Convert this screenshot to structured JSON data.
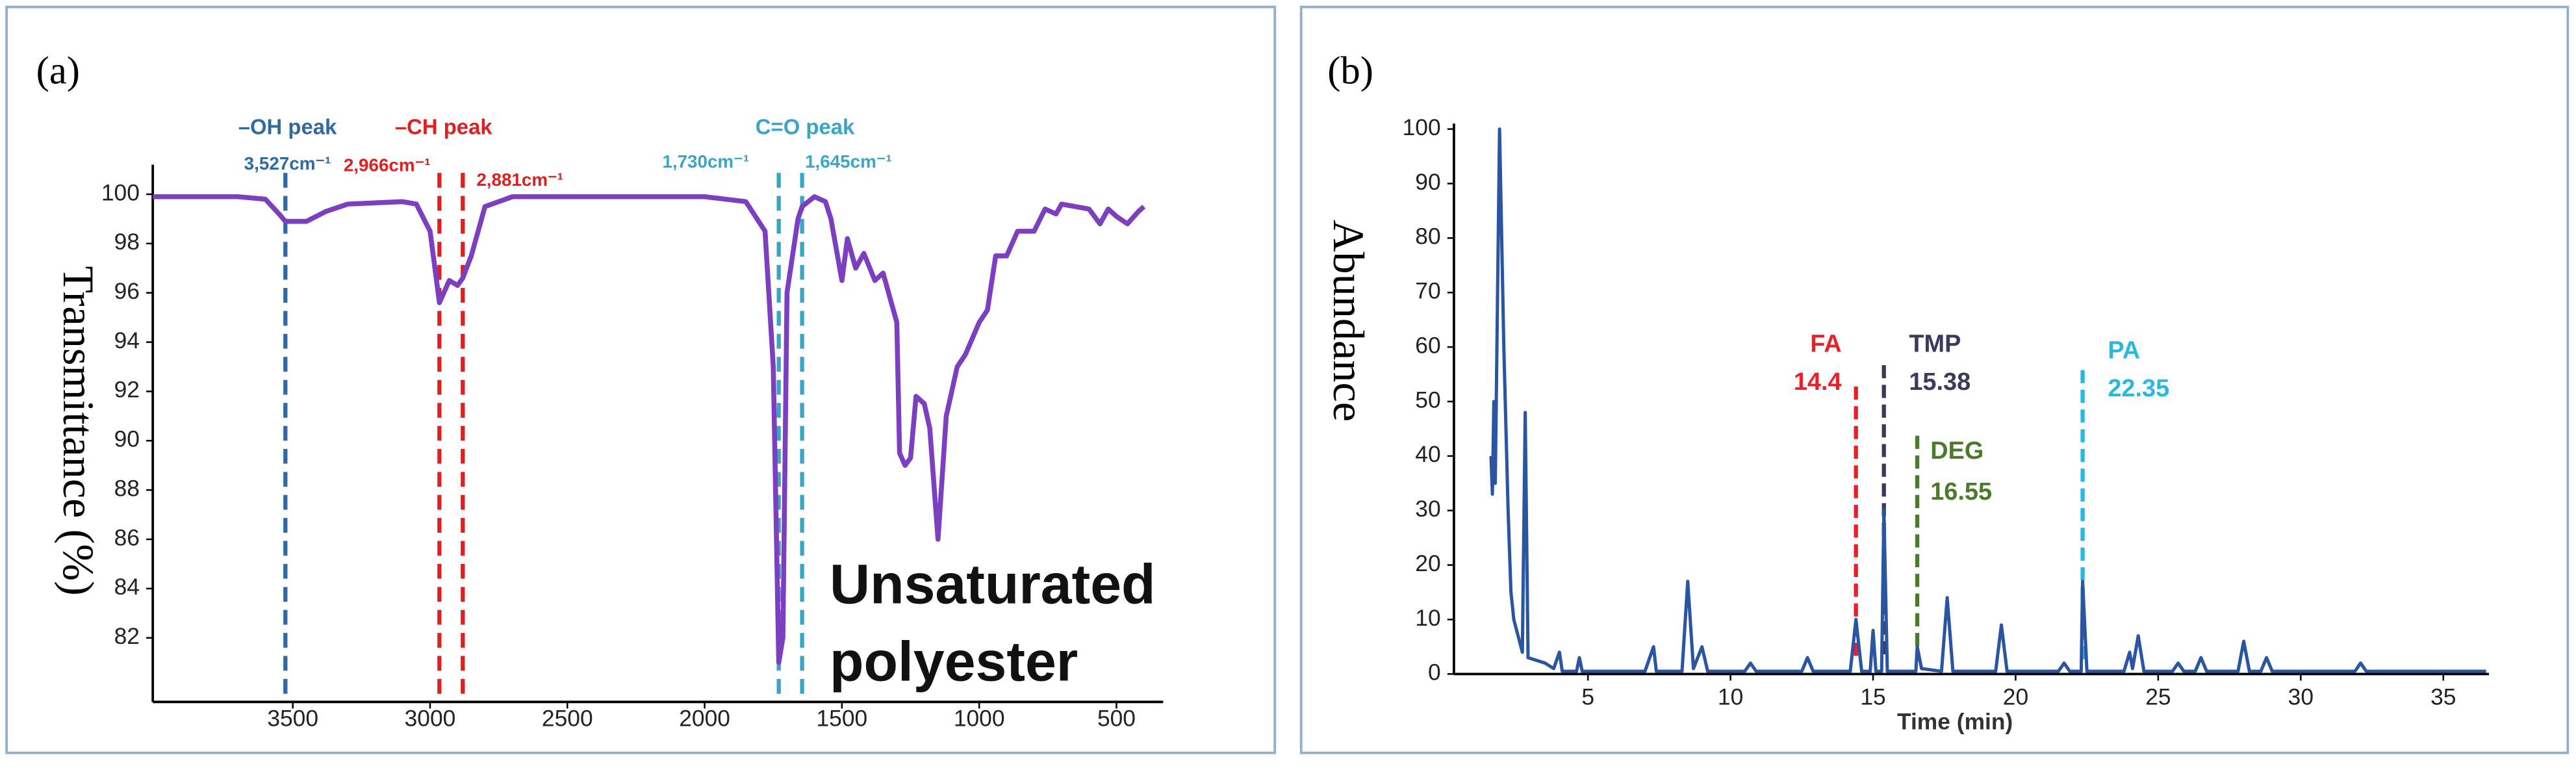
{
  "chart_data": [
    {
      "type": "line",
      "panel_label": "(a)",
      "y_label": "Transmittance (%)",
      "xlim": [
        4010,
        330
      ],
      "ylim": [
        79.4,
        101.2
      ],
      "xticks": [
        3500,
        3000,
        2500,
        2000,
        1500,
        1000,
        500
      ],
      "yticks": [
        82,
        84,
        86,
        88,
        90,
        92,
        94,
        96,
        98,
        100
      ],
      "x": [
        4010,
        3700,
        3600,
        3550,
        3527,
        3450,
        3380,
        3300,
        3100,
        3050,
        3000,
        2966,
        2930,
        2900,
        2881,
        2850,
        2800,
        2700,
        2000,
        1850,
        1780,
        1750,
        1730,
        1715,
        1700,
        1660,
        1645,
        1600,
        1560,
        1540,
        1500,
        1480,
        1450,
        1420,
        1380,
        1350,
        1300,
        1290,
        1270,
        1250,
        1230,
        1200,
        1180,
        1150,
        1120,
        1080,
        1050,
        1000,
        970,
        940,
        900,
        860,
        800,
        760,
        720,
        700,
        650,
        600,
        560,
        530,
        500,
        460,
        420,
        400
      ],
      "series": [
        {
          "color": "#7b3fbf",
          "values": [
            99.9,
            99.9,
            99.8,
            99.2,
            98.9,
            98.9,
            99.3,
            99.6,
            99.7,
            99.6,
            98.5,
            95.6,
            96.5,
            96.3,
            96.6,
            97.5,
            99.5,
            99.9,
            99.9,
            99.7,
            98.5,
            93,
            81,
            82,
            96,
            99,
            99.5,
            99.9,
            99.7,
            99,
            96.5,
            98.2,
            97,
            97.6,
            96.5,
            96.8,
            94.8,
            89.5,
            89,
            89.3,
            91.8,
            91.5,
            90.5,
            86,
            91,
            93,
            93.5,
            94.8,
            95.3,
            97.5,
            97.5,
            98.5,
            98.5,
            99.4,
            99.2,
            99.6,
            99.5,
            99.4,
            98.8,
            99.4,
            99.1,
            98.8,
            99.3,
            99.5
          ]
        }
      ],
      "peaks": [
        {
          "name": "–OH peak",
          "color": "#2f6aa5",
          "lines": [
            {
              "x": 3527,
              "label": "3,527cm⁻¹"
            }
          ]
        },
        {
          "name": "–CH peak",
          "color": "#e02020",
          "lines": [
            {
              "x": 2966,
              "label": "2,966cm⁻¹"
            },
            {
              "x": 2881,
              "label": "2,881cm⁻¹"
            }
          ]
        },
        {
          "name": "C=O peak",
          "color": "#3aa6c6",
          "lines": [
            {
              "x": 1730,
              "label": "1,730cm⁻¹"
            },
            {
              "x": 1645,
              "label": "1,645cm⁻¹"
            }
          ]
        }
      ],
      "annotation_text": [
        "Unsaturated",
        "polyester"
      ]
    },
    {
      "type": "line",
      "panel_label": "(b)",
      "y_label": "Abundance",
      "x_label": "Time (min)",
      "xlim": [
        0.3,
        36.6
      ],
      "ylim": [
        0,
        101
      ],
      "xticks": [
        5,
        10,
        15,
        20,
        25,
        30,
        35
      ],
      "yticks": [
        0,
        10,
        20,
        30,
        40,
        50,
        60,
        70,
        80,
        90,
        100
      ],
      "x": [
        1.6,
        1.65,
        1.7,
        1.75,
        1.9,
        2.05,
        2.2,
        2.3,
        2.4,
        2.6,
        2.7,
        2.8,
        2.9,
        3.5,
        3.8,
        4.0,
        4.1,
        4.6,
        4.7,
        4.8,
        7.0,
        7.3,
        7.4,
        8.3,
        8.5,
        8.7,
        9.0,
        9.2,
        10.5,
        10.7,
        10.9,
        12.5,
        12.7,
        12.9,
        14.2,
        14.4,
        14.6,
        14.9,
        15.0,
        15.1,
        15.3,
        15.38,
        15.5,
        16.5,
        16.55,
        16.7,
        17.4,
        17.6,
        17.8,
        19.3,
        19.5,
        19.7,
        21.5,
        21.7,
        21.9,
        22.3,
        22.35,
        22.5,
        23.8,
        24.0,
        24.1,
        24.3,
        24.5,
        25.5,
        25.7,
        25.9,
        26.3,
        26.5,
        26.7,
        27.8,
        28.0,
        28.2,
        28.6,
        28.8,
        29.0,
        31.9,
        32.1,
        32.3,
        36.5
      ],
      "series": [
        {
          "color": "#2a55a0",
          "values": [
            40,
            33,
            50,
            35,
            100,
            60,
            30,
            15,
            10,
            6,
            4,
            48,
            3,
            2,
            1,
            4,
            0.5,
            0.5,
            3,
            0.5,
            0.5,
            5,
            0.5,
            0.5,
            17,
            1,
            5,
            0.5,
            0.5,
            2,
            0.5,
            0.5,
            3,
            0.5,
            0.5,
            10,
            0.5,
            0.5,
            8,
            0.5,
            0.5,
            30,
            0.5,
            0.5,
            5,
            1,
            0.5,
            14,
            0.5,
            0.5,
            9,
            0.5,
            0.5,
            2,
            0.5,
            0.5,
            17,
            0.5,
            0.5,
            4,
            1,
            7,
            0.5,
            0.5,
            2,
            0.5,
            0.5,
            3,
            0.5,
            0.5,
            6,
            0.5,
            0.5,
            3,
            0.5,
            0.5,
            2,
            0.5,
            0.5
          ]
        }
      ],
      "peaks": [
        {
          "name": "FA",
          "color": "#e8202a",
          "lines": [
            {
              "x": 14.4
            }
          ]
        },
        {
          "name": "TMP",
          "color": "#3a3a5a",
          "lines": [
            {
              "x": 15.38
            }
          ]
        },
        {
          "name": "DEG",
          "color": "#4a7a2a",
          "lines": [
            {
              "x": 16.55
            }
          ]
        },
        {
          "name": "PA",
          "color": "#28b8e0",
          "lines": [
            {
              "x": 22.35
            }
          ]
        }
      ]
    }
  ]
}
